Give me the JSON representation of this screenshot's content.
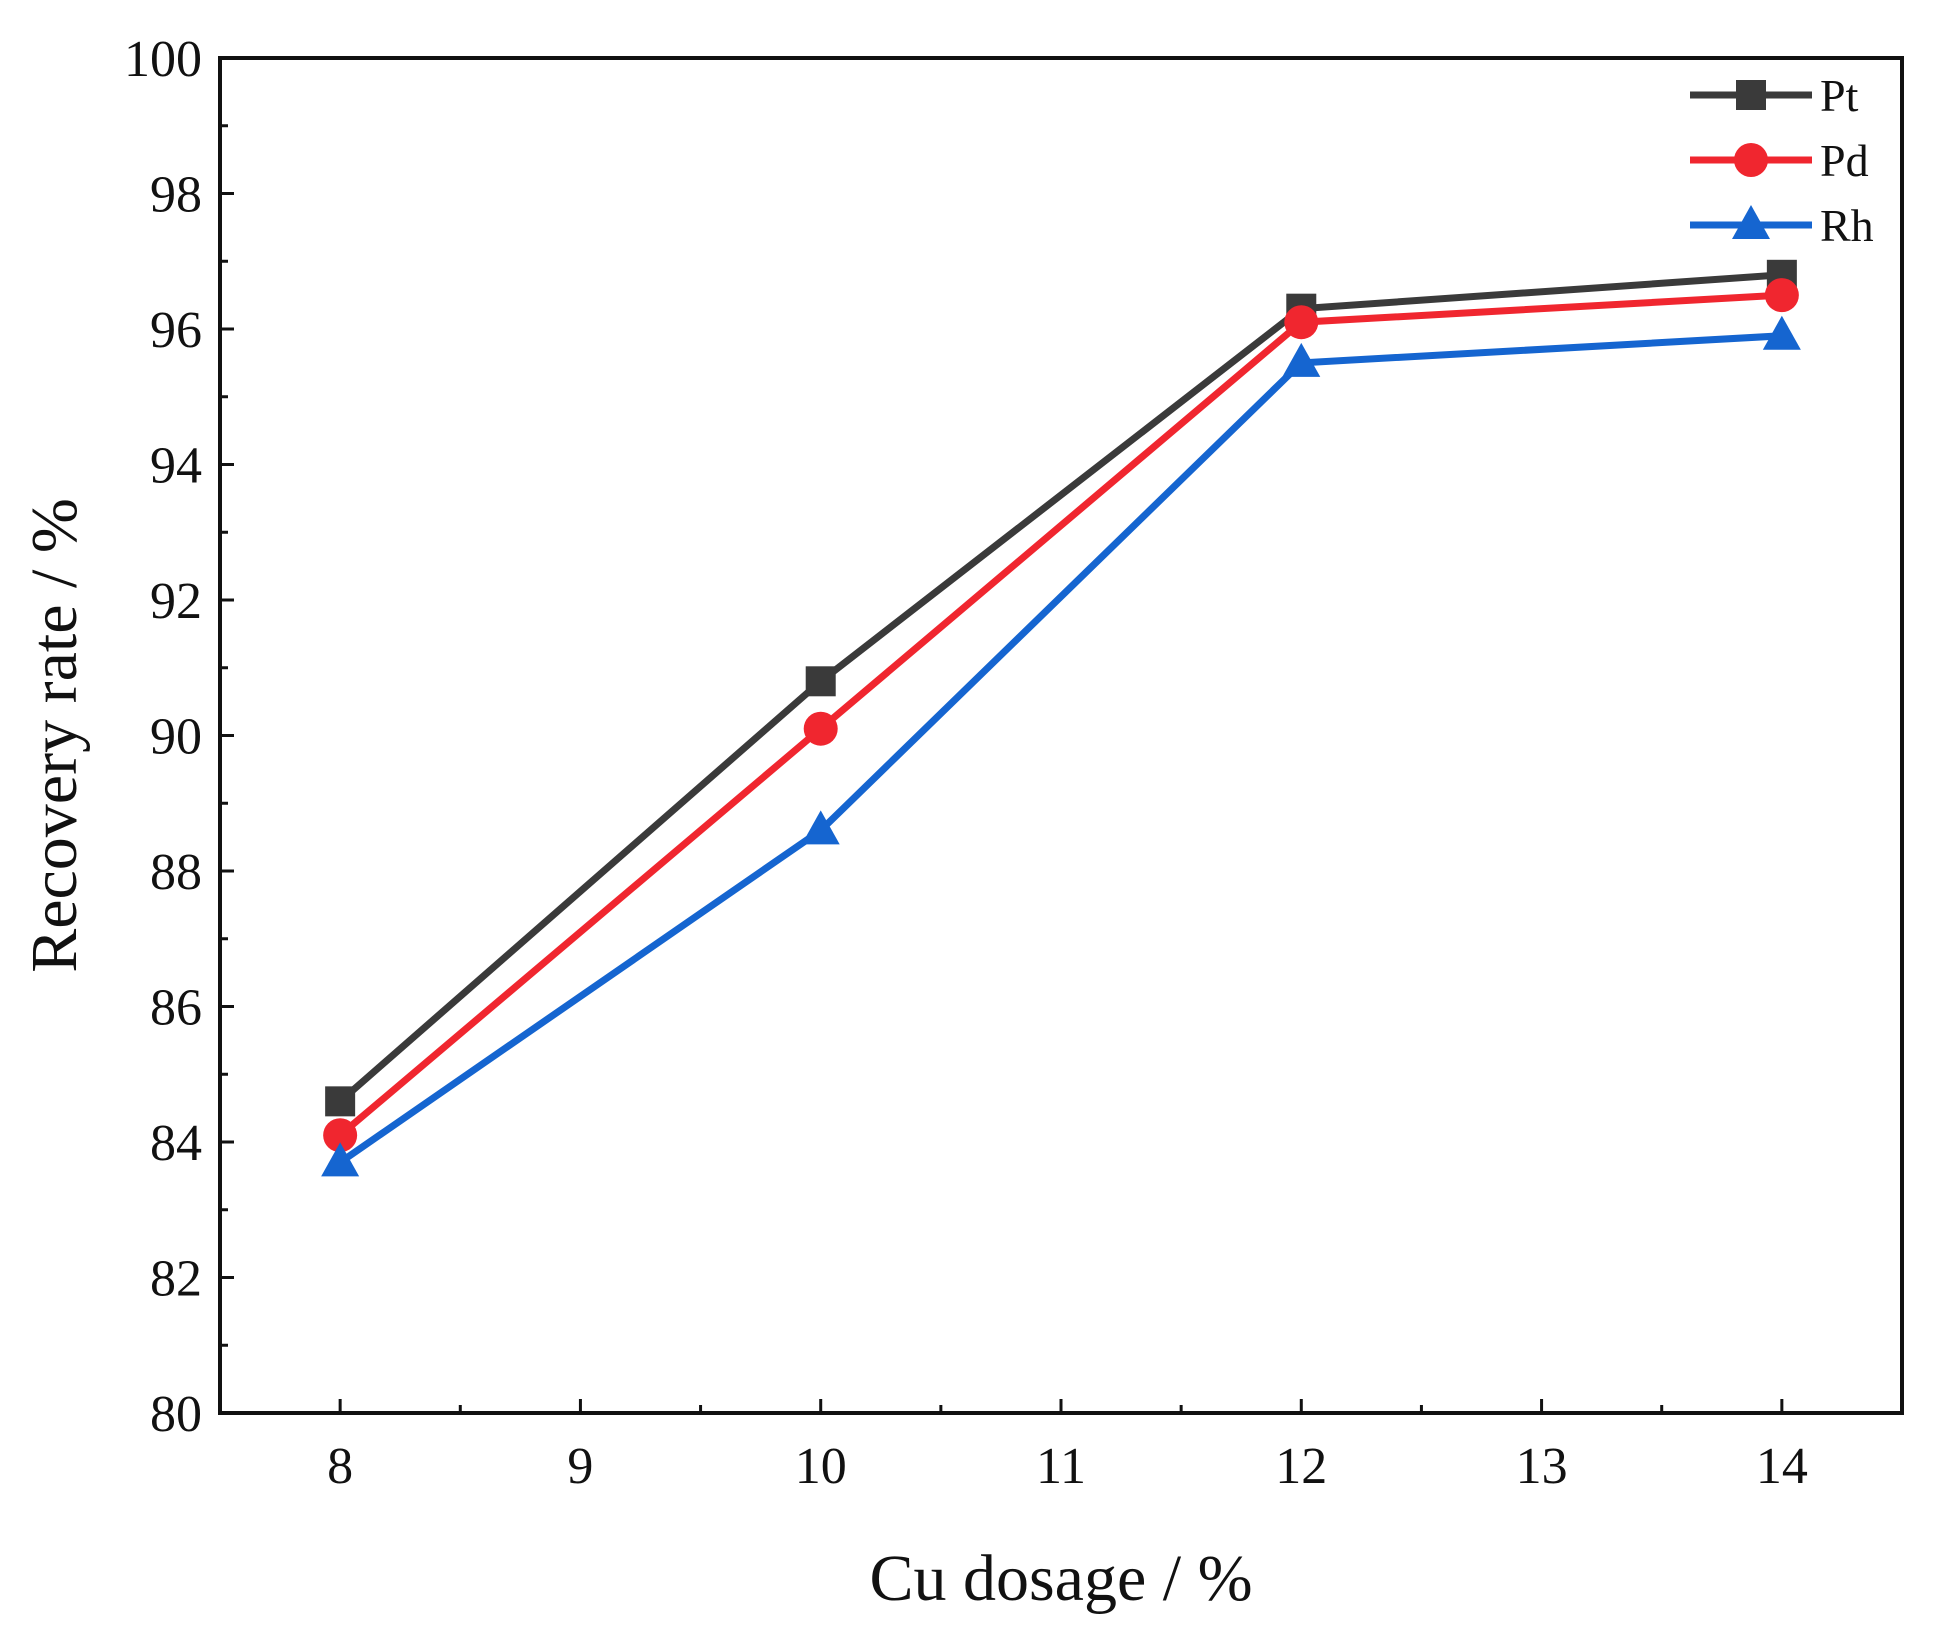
{
  "chart_data": {
    "type": "line",
    "title": "",
    "xlabel": "Cu dosage / %",
    "ylabel": "Recovery rate / %",
    "xlim": [
      7.5,
      14.5
    ],
    "ylim": [
      80,
      100
    ],
    "xticks": [
      8,
      9,
      10,
      11,
      12,
      13,
      14
    ],
    "yticks": [
      80,
      82,
      84,
      86,
      88,
      90,
      92,
      94,
      96,
      98,
      100
    ],
    "x": [
      8,
      10,
      12,
      14
    ],
    "legend_position": "top-right",
    "grid": false,
    "series": [
      {
        "name": "Pt",
        "color": "#3a3a3a",
        "marker": "square",
        "values": [
          84.6,
          90.8,
          96.3,
          96.8
        ]
      },
      {
        "name": "Pd",
        "color": "#f0262f",
        "marker": "circle",
        "values": [
          84.1,
          90.1,
          96.1,
          96.5
        ]
      },
      {
        "name": "Rh",
        "color": "#1565d0",
        "marker": "triangle",
        "values": [
          83.7,
          88.6,
          95.5,
          95.9
        ]
      }
    ]
  }
}
